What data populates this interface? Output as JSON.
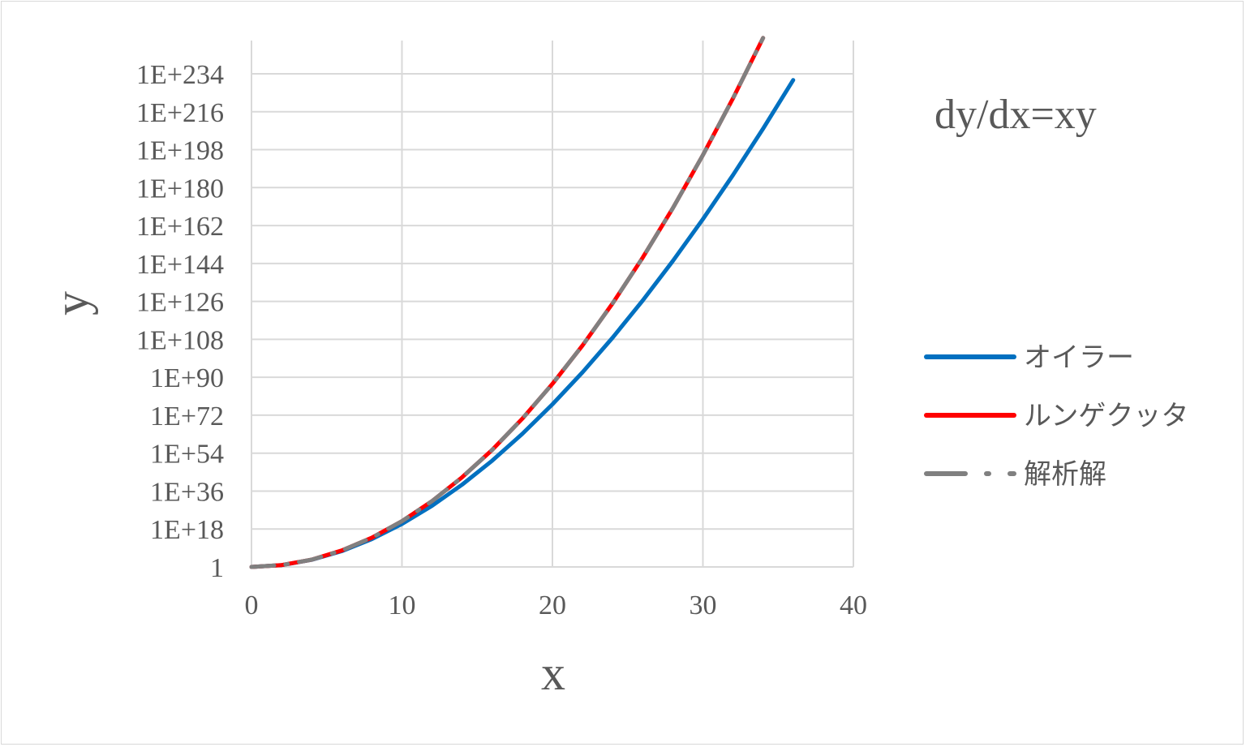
{
  "chart_data": {
    "type": "line",
    "title": "dy/dx=xy",
    "xlabel": "x",
    "ylabel": "y",
    "xlim": [
      0,
      40
    ],
    "x_ticks": [
      "0",
      "10",
      "20",
      "30",
      "40"
    ],
    "x_tick_values": [
      0,
      10,
      20,
      30,
      40
    ],
    "y_scale": "log10",
    "ylim_log10": [
      0,
      250
    ],
    "y_ticks": [
      "1",
      "1E+18",
      "1E+36",
      "1E+54",
      "1E+72",
      "1E+90",
      "1E+108",
      "1E+126",
      "1E+144",
      "1E+162",
      "1E+180",
      "1E+198",
      "1E+216",
      "1E+234"
    ],
    "y_tick_log10": [
      0,
      18,
      36,
      54,
      72,
      90,
      108,
      126,
      144,
      162,
      180,
      198,
      216,
      234
    ],
    "grid": true,
    "legend_position": "right",
    "x": [
      0,
      2,
      4,
      6,
      8,
      10,
      12,
      14,
      16,
      18,
      20,
      22,
      24,
      26,
      28,
      30,
      32,
      34,
      36
    ],
    "series": [
      {
        "name": "オイラー",
        "color": "#0070C0",
        "style": "solid",
        "log10_values": [
          0,
          0.86,
          3.39,
          7.52,
          13.21,
          20.4,
          29.03,
          39.06,
          50.46,
          63.17,
          77.15,
          92.38,
          108.81,
          126.42,
          145.17,
          165.03,
          185.98,
          207.99,
          231.04
        ]
      },
      {
        "name": "ルンゲクッタ",
        "color": "#FF0000",
        "style": "solid",
        "log10_values": [
          0,
          0.87,
          3.47,
          7.82,
          13.9,
          21.71,
          31.27,
          42.56,
          55.59,
          70.36,
          86.86,
          105.1,
          125.08,
          146.79,
          170.24,
          195.43,
          222.36,
          251.03,
          null
        ]
      },
      {
        "name": "解析解",
        "color": "#808080",
        "style": "long-dash-dot",
        "log10_values": [
          0,
          0.87,
          3.47,
          7.82,
          13.9,
          21.71,
          31.27,
          42.56,
          55.59,
          70.36,
          86.86,
          105.1,
          125.08,
          146.79,
          170.24,
          195.43,
          222.36,
          251.03,
          null
        ]
      }
    ]
  }
}
